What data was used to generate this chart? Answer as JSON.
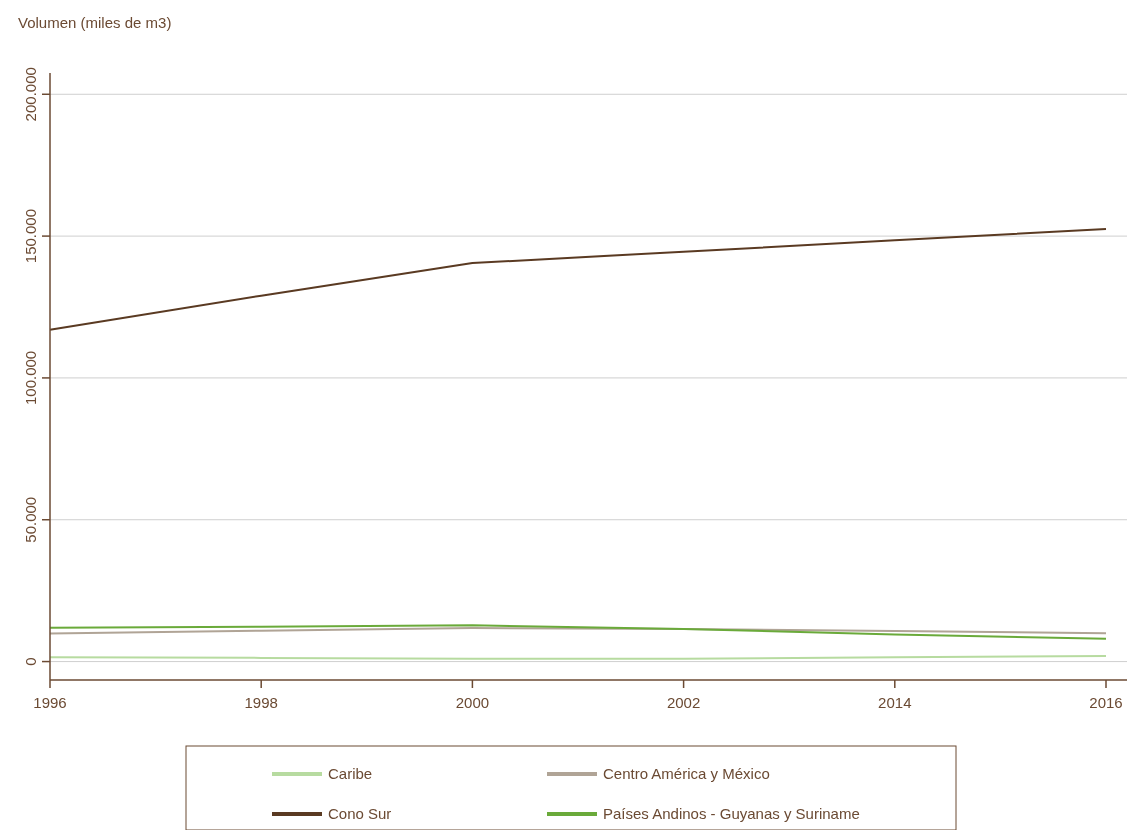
{
  "chart_data": {
    "type": "line",
    "ylabel": "Volumen (miles de m3)",
    "categories": [
      "1996",
      "1998",
      "2000",
      "2002",
      "2014",
      "2016"
    ],
    "series": [
      {
        "name": "Caribe",
        "color": "#b7dba0",
        "values": [
          1500,
          1300,
          1000,
          1000,
          1500,
          2000
        ]
      },
      {
        "name": "Centro América y México",
        "color": "#b0a496",
        "values": [
          9900,
          10900,
          11800,
          11500,
          10800,
          10000
        ]
      },
      {
        "name": "Cono Sur",
        "color": "#5a3a22",
        "values": [
          117000,
          129000,
          140500,
          144500,
          148500,
          152500
        ]
      },
      {
        "name": "Países Andinos - Guyanas y Suriname",
        "color": "#6aaa3a",
        "values": [
          11900,
          12300,
          12800,
          11500,
          9500,
          8000
        ]
      }
    ],
    "ylim": [
      -6500,
      207500
    ],
    "yticks": [
      {
        "value": 0,
        "label": "0"
      },
      {
        "value": 50000,
        "label": "50.000"
      },
      {
        "value": 100000,
        "label": "100.000"
      },
      {
        "value": 150000,
        "label": "150.000"
      },
      {
        "value": 200000,
        "label": "200.000"
      }
    ],
    "grid": "y",
    "legend": "bottom"
  }
}
